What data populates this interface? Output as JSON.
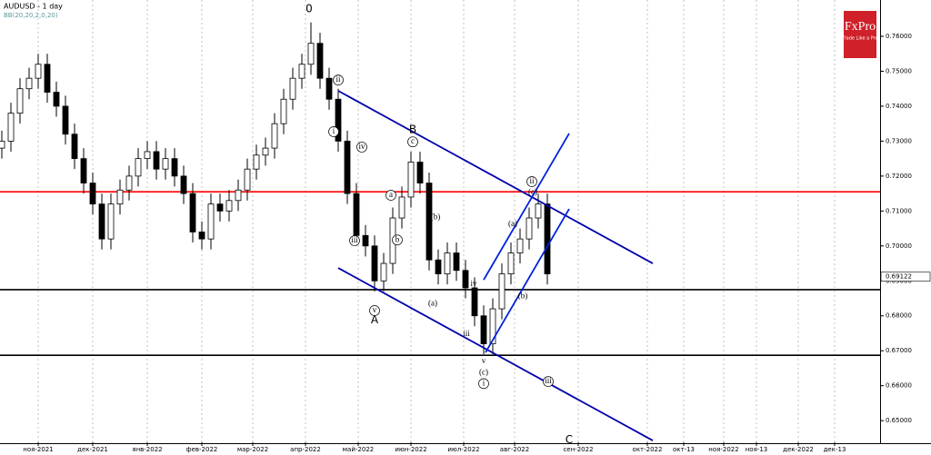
{
  "chart_data": {
    "type": "candlestick",
    "title": "AUDUSD - 1 day",
    "subtitle": "BB(20,20,2,0,20)",
    "brand": {
      "name": "FxPro",
      "slogan": "Trade Like a Pro"
    },
    "current_price": {
      "value": 0.69122,
      "label": "0.69122"
    },
    "up_color": "#ffffff",
    "down_color": "#000000",
    "x": [
      1,
      6,
      11,
      16,
      21,
      26,
      31,
      36,
      41,
      46,
      51,
      56,
      61,
      66,
      71,
      76,
      81,
      86,
      91,
      96,
      101,
      106,
      111,
      116,
      121,
      126,
      131,
      136,
      141,
      146,
      151,
      156,
      161,
      166,
      171,
      176,
      181,
      186,
      191,
      196,
      201,
      206,
      211,
      216,
      221,
      226,
      231,
      236,
      241,
      246,
      251,
      256,
      261,
      266,
      271,
      276,
      281,
      286,
      291,
      296,
      301
    ],
    "open": [
      0.728,
      0.73,
      0.738,
      0.745,
      0.748,
      0.752,
      0.744,
      0.74,
      0.732,
      0.725,
      0.718,
      0.712,
      0.702,
      0.712,
      0.716,
      0.72,
      0.725,
      0.727,
      0.722,
      0.725,
      0.72,
      0.715,
      0.704,
      0.702,
      0.712,
      0.71,
      0.713,
      0.716,
      0.722,
      0.726,
      0.728,
      0.735,
      0.742,
      0.748,
      0.752,
      0.758,
      0.748,
      0.742,
      0.73,
      0.715,
      0.703,
      0.7,
      0.69,
      0.695,
      0.708,
      0.714,
      0.724,
      0.718,
      0.696,
      0.692,
      0.698,
      0.693,
      0.688,
      0.68,
      0.672,
      0.682,
      0.692,
      0.698,
      0.702,
      0.708,
      0.712
    ],
    "high": [
      0.733,
      0.741,
      0.748,
      0.751,
      0.755,
      0.755,
      0.747,
      0.743,
      0.735,
      0.728,
      0.721,
      0.715,
      0.715,
      0.719,
      0.723,
      0.728,
      0.73,
      0.73,
      0.728,
      0.728,
      0.723,
      0.718,
      0.707,
      0.715,
      0.715,
      0.716,
      0.719,
      0.725,
      0.729,
      0.731,
      0.738,
      0.745,
      0.751,
      0.755,
      0.764,
      0.761,
      0.751,
      0.745,
      0.733,
      0.718,
      0.706,
      0.703,
      0.698,
      0.711,
      0.717,
      0.727,
      0.727,
      0.721,
      0.699,
      0.701,
      0.701,
      0.696,
      0.691,
      0.683,
      0.685,
      0.695,
      0.701,
      0.705,
      0.711,
      0.715,
      0.715
    ],
    "low": [
      0.725,
      0.727,
      0.735,
      0.742,
      0.745,
      0.741,
      0.737,
      0.729,
      0.722,
      0.715,
      0.709,
      0.699,
      0.699,
      0.709,
      0.713,
      0.717,
      0.722,
      0.719,
      0.719,
      0.717,
      0.712,
      0.701,
      0.699,
      0.699,
      0.707,
      0.707,
      0.71,
      0.713,
      0.719,
      0.723,
      0.725,
      0.732,
      0.739,
      0.745,
      0.749,
      0.745,
      0.739,
      0.727,
      0.712,
      0.7,
      0.697,
      0.687,
      0.687,
      0.692,
      0.705,
      0.711,
      0.715,
      0.693,
      0.689,
      0.689,
      0.69,
      0.685,
      0.677,
      0.669,
      0.669,
      0.679,
      0.689,
      0.695,
      0.699,
      0.705,
      0.689
    ],
    "close": [
      0.73,
      0.738,
      0.745,
      0.748,
      0.752,
      0.744,
      0.74,
      0.732,
      0.725,
      0.718,
      0.712,
      0.702,
      0.712,
      0.716,
      0.72,
      0.725,
      0.727,
      0.722,
      0.725,
      0.72,
      0.715,
      0.704,
      0.702,
      0.712,
      0.71,
      0.713,
      0.716,
      0.722,
      0.726,
      0.728,
      0.735,
      0.742,
      0.748,
      0.752,
      0.758,
      0.748,
      0.742,
      0.73,
      0.715,
      0.703,
      0.7,
      0.69,
      0.695,
      0.708,
      0.714,
      0.724,
      0.718,
      0.696,
      0.692,
      0.698,
      0.693,
      0.688,
      0.68,
      0.672,
      0.682,
      0.692,
      0.698,
      0.702,
      0.708,
      0.712,
      0.692
    ],
    "hlines": [
      {
        "value": 0.7155,
        "color": "#ff0000"
      },
      {
        "value": 0.6875,
        "color": "#000000"
      },
      {
        "value": 0.6687,
        "color": "#000000"
      }
    ],
    "trendlines": [
      {
        "x": [
          186,
          359
        ],
        "y": [
          0.7444,
          0.695
        ],
        "color": "#0000aa"
      },
      {
        "x": [
          186,
          359
        ],
        "y": [
          0.6937,
          0.6443
        ],
        "color": "#0000aa"
      },
      {
        "x": [
          266,
          313
        ],
        "y": [
          0.6903,
          0.7322
        ],
        "color": "#0022dd"
      },
      {
        "x": [
          267,
          313
        ],
        "y": [
          0.6695,
          0.7106
        ],
        "color": "#0022dd"
      }
    ],
    "annotations": [
      {
        "text": "0",
        "x": 170,
        "y": 0.7678,
        "circled": false
      },
      {
        "text": "B",
        "x": 227,
        "y": 0.7332,
        "circled": false
      },
      {
        "text": "A",
        "x": 206,
        "y": 0.6788,
        "circled": false
      },
      {
        "text": "C",
        "x": 313,
        "y": 0.6445,
        "circled": false
      },
      {
        "text": "ii",
        "x": 186,
        "y": 0.7475,
        "circled": true
      },
      {
        "text": "i",
        "x": 183.5,
        "y": 0.7327,
        "circled": true
      },
      {
        "text": "iv",
        "x": 199,
        "y": 0.7283,
        "circled": true
      },
      {
        "text": "iii",
        "x": 195,
        "y": 0.7015,
        "circled": true
      },
      {
        "text": "v",
        "x": 206,
        "y": 0.6815,
        "circled": true
      },
      {
        "text": "a",
        "x": 215,
        "y": 0.7145,
        "circled": true
      },
      {
        "text": "b",
        "x": 218.5,
        "y": 0.7017,
        "circled": true
      },
      {
        "text": "c",
        "x": 227,
        "y": 0.7298,
        "circled": true
      },
      {
        "text": "(b)",
        "x": 239.5,
        "y": 0.7082,
        "circled": false
      },
      {
        "text": "(a)",
        "x": 238,
        "y": 0.6835,
        "circled": false
      },
      {
        "text": "iv",
        "x": 260.5,
        "y": 0.689,
        "circled": false
      },
      {
        "text": "iii",
        "x": 256.5,
        "y": 0.6747,
        "circled": false
      },
      {
        "text": "v",
        "x": 266,
        "y": 0.6669,
        "circled": false
      },
      {
        "text": "(c)",
        "x": 266,
        "y": 0.6637,
        "circled": false
      },
      {
        "text": "i",
        "x": 266,
        "y": 0.6606,
        "circled": true
      },
      {
        "text": "(a)",
        "x": 282,
        "y": 0.7062,
        "circled": false
      },
      {
        "text": "(b)",
        "x": 287.5,
        "y": 0.6856,
        "circled": false
      },
      {
        "text": "ii",
        "x": 292.5,
        "y": 0.7184,
        "circled": true
      },
      {
        "text": "(c)",
        "x": 293,
        "y": 0.7153,
        "circled": false
      },
      {
        "text": "iii",
        "x": 301.5,
        "y": 0.6612,
        "circled": true
      }
    ],
    "xlim": [
      0,
      484
    ],
    "ylim": [
      0.6438,
      0.7704
    ],
    "xticks": [
      {
        "value": 21,
        "label": "ноя-2021"
      },
      {
        "value": 51,
        "label": "дек-2021"
      },
      {
        "value": 81,
        "label": "янв-2022"
      },
      {
        "value": 111,
        "label": "фев-2022"
      },
      {
        "value": 139,
        "label": "мар-2022"
      },
      {
        "value": 168,
        "label": "апр-2022"
      },
      {
        "value": 197,
        "label": "май-2022"
      },
      {
        "value": 226,
        "label": "июн-2022"
      },
      {
        "value": 255,
        "label": "июл-2022"
      },
      {
        "value": 283,
        "label": "авг-2022"
      },
      {
        "value": 318,
        "label": "сен-2022"
      },
      {
        "value": 356,
        "label": "окт-2022"
      },
      {
        "value": 376,
        "label": "окт-13"
      },
      {
        "value": 398,
        "label": "ноя-2022"
      },
      {
        "value": 416,
        "label": "ноя-13"
      },
      {
        "value": 439,
        "label": "дек-2022"
      },
      {
        "value": 459,
        "label": "дек-13"
      }
    ],
    "yticks": [
      {
        "value": 0.65,
        "label": "0.65000"
      },
      {
        "value": 0.66,
        "label": "0.66000"
      },
      {
        "value": 0.67,
        "label": "0.67000"
      },
      {
        "value": 0.68,
        "label": "0.68000"
      },
      {
        "value": 0.69,
        "label": "0.69000"
      },
      {
        "value": 0.7,
        "label": "0.70000"
      },
      {
        "value": 0.71,
        "label": "0.71000"
      },
      {
        "value": 0.72,
        "label": "0.72000"
      },
      {
        "value": 0.73,
        "label": "0.73000"
      },
      {
        "value": 0.74,
        "label": "0.74000"
      },
      {
        "value": 0.75,
        "label": "0.75000"
      },
      {
        "value": 0.76,
        "label": "0.76000"
      }
    ],
    "grid": true
  }
}
